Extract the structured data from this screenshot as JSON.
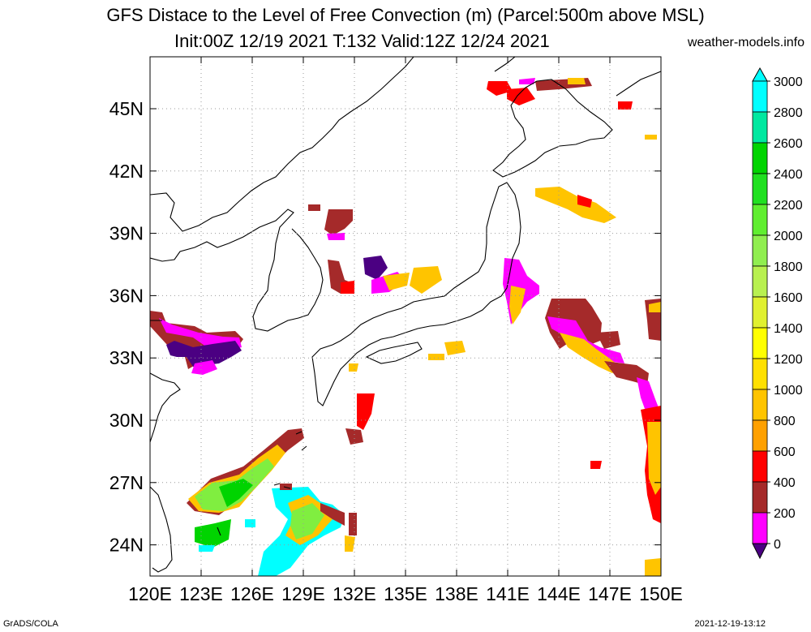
{
  "title": {
    "line1": "GFS Distace to the Level of Free Convection (m) (Parcel:500m above MSL)",
    "line2": "Init:00Z 12/19 2021 T:132 Valid:12Z 12/24 2021",
    "site": "weather-models.info"
  },
  "map": {
    "lon_range": [
      120,
      150
    ],
    "lat_range": [
      22.5,
      47.5
    ],
    "lon_ticks": [
      "120E",
      "123E",
      "126E",
      "129E",
      "132E",
      "135E",
      "138E",
      "141E",
      "144E",
      "147E",
      "150E"
    ],
    "lat_ticks": [
      "24N",
      "27N",
      "30N",
      "33N",
      "36N",
      "39N",
      "42N",
      "45N"
    ],
    "grid": "dotted"
  },
  "colorbar": {
    "levels": [
      "3000",
      "2800",
      "2600",
      "2400",
      "2200",
      "2000",
      "1800",
      "1600",
      "1400",
      "1200",
      "1000",
      "800",
      "600",
      "400",
      "200",
      "0"
    ],
    "colors": [
      "#00ffff",
      "#00e8a0",
      "#00d400",
      "#20e020",
      "#60ee30",
      "#90ee50",
      "#b8f050",
      "#e0f030",
      "#ffff00",
      "#ffe000",
      "#ffc400",
      "#ffa000",
      "#ff0000",
      "#a52a2a",
      "#ff00ff",
      "#4b0082"
    ]
  },
  "footer": {
    "left": "GrADS/COLA",
    "right": "2021-12-19-13:12"
  }
}
